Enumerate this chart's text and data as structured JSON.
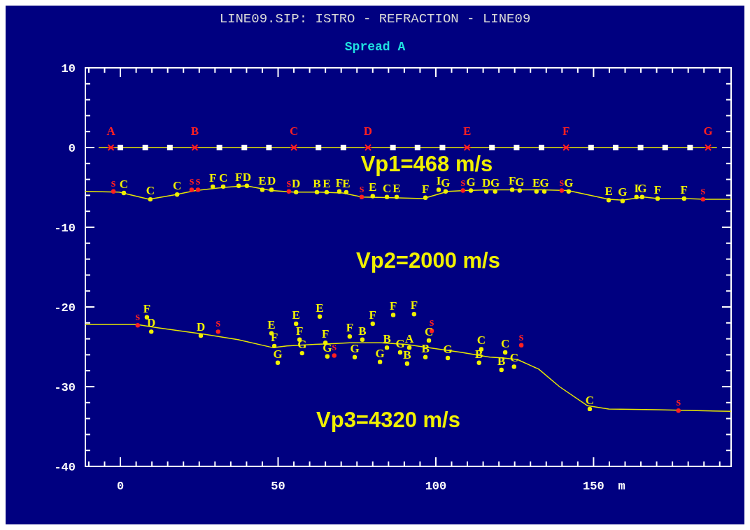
{
  "chart_data": {
    "type": "line",
    "title": "LINE09.SIP: ISTRO - REFRACTION - LINE09",
    "subtitle": "Spread A",
    "xlabel": "m",
    "xlim": [
      -11.1,
      193.6
    ],
    "ylim": [
      -40,
      10
    ],
    "xticks": [
      {
        "value": -10,
        "label": null
      },
      {
        "value": -5,
        "label": null
      },
      0,
      {
        "value": 5,
        "label": null
      },
      {
        "value": 10,
        "label": null
      },
      {
        "value": 15,
        "label": null
      },
      {
        "value": 20,
        "label": null
      },
      {
        "value": 25,
        "label": null
      },
      {
        "value": 30,
        "label": null
      },
      {
        "value": 35,
        "label": null
      },
      {
        "value": 40,
        "label": null
      },
      {
        "value": 45,
        "label": null
      },
      50,
      {
        "value": 55,
        "label": null
      },
      {
        "value": 60,
        "label": null
      },
      {
        "value": 65,
        "label": null
      },
      {
        "value": 70,
        "label": null
      },
      {
        "value": 75,
        "label": null
      },
      {
        "value": 80,
        "label": null
      },
      {
        "value": 85,
        "label": null
      },
      {
        "value": 90,
        "label": null
      },
      {
        "value": 95,
        "label": null
      },
      100,
      {
        "value": 105,
        "label": null
      },
      {
        "value": 110,
        "label": null
      },
      {
        "value": 115,
        "label": null
      },
      {
        "value": 120,
        "label": null
      },
      {
        "value": 125,
        "label": null
      },
      {
        "value": 130,
        "label": null
      },
      {
        "value": 135,
        "label": null
      },
      {
        "value": 140,
        "label": null
      },
      {
        "value": 145,
        "label": null
      },
      150,
      {
        "value": 155,
        "label": null
      },
      {
        "value": 160,
        "label": null
      },
      {
        "value": 165,
        "label": null
      },
      {
        "value": 170,
        "label": null
      },
      {
        "value": 175,
        "label": null
      },
      {
        "value": 180,
        "label": null
      },
      {
        "value": 185,
        "label": null
      },
      {
        "value": 190,
        "label": null
      }
    ],
    "yticks": [
      -40,
      {
        "value": -38,
        "label": null
      },
      {
        "value": -36,
        "label": null
      },
      {
        "value": -34,
        "label": null
      },
      {
        "value": -32,
        "label": null
      },
      -30,
      {
        "value": -28,
        "label": null
      },
      {
        "value": -26,
        "label": null
      },
      {
        "value": -24,
        "label": null
      },
      {
        "value": -22,
        "label": null
      },
      -20,
      {
        "value": -18,
        "label": null
      },
      {
        "value": -16,
        "label": null
      },
      {
        "value": -14,
        "label": null
      },
      {
        "value": -12,
        "label": null
      },
      -10,
      {
        "value": -8,
        "label": null
      },
      {
        "value": -6,
        "label": null
      },
      {
        "value": -4,
        "label": null
      },
      {
        "value": -2,
        "label": null
      },
      0,
      {
        "value": 2,
        "label": null
      },
      {
        "value": 4,
        "label": null
      },
      {
        "value": 6,
        "label": null
      },
      {
        "value": 8,
        "label": null
      },
      10
    ],
    "annotations": [
      "Vp1=468 m/s",
      "Vp2=2000 m/s",
      "Vp3=4320 m/s"
    ],
    "series": [
      {
        "color": "#e8e800",
        "x": [
          -6.9,
          189.1
        ],
        "values": [
          0,
          0
        ]
      },
      {
        "color": "#e8e800",
        "x": [
          -11.1,
          -0.4,
          9.1,
          17.7,
          23.9,
          32.8,
          39.9,
          47.9,
          55.0,
          62.7,
          70.5,
          76.5,
          86.0,
          96.0,
          103.8,
          109.3,
          117.1,
          125.9,
          133.7,
          141.9,
          154.8,
          159.2,
          165.9,
          170.3,
          179.2,
          185.4,
          193.6
        ],
        "values": [
          -5.5,
          -5.6,
          -6.5,
          -5.9,
          -5.4,
          -5.0,
          -4.8,
          -5.4,
          -5.6,
          -5.6,
          -5.7,
          -6.2,
          -6.3,
          -6.4,
          -5.5,
          -5.4,
          -5.3,
          -5.3,
          -5.3,
          -5.4,
          -6.5,
          -6.6,
          -6.2,
          -6.4,
          -6.4,
          -6.5,
          -6.5
        ]
      },
      {
        "color": "#e8e800",
        "x": [
          -11.1,
          5.1,
          11.8,
          26.2,
          37.3,
          48.3,
          52.8,
          61.6,
          67.2,
          72.7,
          82.7,
          90.5,
          99.3,
          108.2,
          117.1,
          121.5,
          125.9,
          132.6,
          139.2,
          148.1,
          154.8,
          170.3,
          193.6
        ],
        "values": [
          -22.2,
          -22.2,
          -22.6,
          -23.4,
          -24.1,
          -25.1,
          -24.9,
          -24.7,
          -24.6,
          -24.5,
          -24.5,
          -24.7,
          -25.2,
          -25.7,
          -26.3,
          -26.4,
          -26.6,
          -27.8,
          -30.0,
          -32.4,
          -32.8,
          -32.9,
          -33.1
        ]
      },
      {
        "type": "scatter",
        "marker": "square",
        "color": "#ffffff",
        "x": [
          0,
          7.9,
          15.7,
          31.4,
          39.3,
          47.1,
          62.8,
          70.7,
          86.4,
          94.2,
          102.1,
          117.8,
          125.6,
          133.5,
          149.2,
          157,
          164.9,
          172.7,
          180.6
        ],
        "values": [
          0,
          0,
          0,
          0,
          0,
          0,
          0,
          0,
          0,
          0,
          0,
          0,
          0,
          0,
          0,
          0,
          0,
          0,
          0
        ]
      },
      {
        "type": "scatter",
        "marker": "cross",
        "color": "#ff2020",
        "x": [
          -3,
          23.6,
          55,
          78.5,
          109.9,
          141.3,
          186.3
        ],
        "values": [
          0,
          0,
          0,
          0,
          0,
          0,
          0
        ],
        "value_labels": [
          "A",
          "B",
          "C",
          "D",
          "E",
          "F",
          "G"
        ]
      },
      {
        "type": "scatter",
        "marker": "circle",
        "color": "#ff2020",
        "x": [
          -2.2,
          22.6,
          24.6,
          53.4,
          76.5,
          108.6,
          139.9,
          184.7,
          5.5,
          31.0,
          67.8,
          98.7,
          127.1,
          176.9
        ],
        "values": [
          -5.5,
          -5.3,
          -5.3,
          -5.5,
          -6.2,
          -5.4,
          -5.4,
          -6.5,
          -22.3,
          -23.1,
          -26.1,
          -23.0,
          -24.8,
          -33.0
        ],
        "value_labels": [
          "s",
          "s",
          "s",
          "s",
          "s",
          "s",
          "s",
          "s",
          "s",
          "s",
          "s",
          "s",
          "s",
          "s"
        ]
      },
      {
        "type": "scatter",
        "marker": "circle",
        "color": "#f0f000",
        "x": [
          1.1,
          9.5,
          18.0,
          29.3,
          32.6,
          37.5,
          40.1,
          45.0,
          47.9,
          55.7,
          62.3,
          65.4,
          69.4,
          71.6,
          80.0,
          84.5,
          87.6,
          96.7,
          100.9,
          103.1,
          111.1,
          116.0,
          118.8,
          124.2,
          126.6,
          131.9,
          134.4,
          142.1,
          154.8,
          159.2,
          163.6,
          165.4,
          170.3,
          178.7,
          8.4,
          9.8,
          25.5,
          47.9,
          48.8,
          49.9,
          55.7,
          56.8,
          57.6,
          63.2,
          65.0,
          65.6,
          72.7,
          74.3,
          76.7,
          80.0,
          84.5,
          82.3,
          86.5,
          88.7,
          90.9,
          91.6,
          93.1,
          96.7,
          97.8,
          103.8,
          113.7,
          114.4,
          120.8,
          122.0,
          124.8,
          148.8
        ],
        "values": [
          -5.7,
          -6.5,
          -5.9,
          -4.9,
          -4.9,
          -4.8,
          -4.8,
          -5.3,
          -5.3,
          -5.6,
          -5.6,
          -5.6,
          -5.5,
          -5.6,
          -6.1,
          -6.2,
          -6.2,
          -6.3,
          -5.3,
          -5.5,
          -5.4,
          -5.5,
          -5.5,
          -5.3,
          -5.4,
          -5.5,
          -5.5,
          -5.5,
          -6.6,
          -6.7,
          -6.2,
          -6.2,
          -6.4,
          -6.4,
          -21.3,
          -23.1,
          -23.6,
          -23.3,
          -24.9,
          -27.0,
          -22.1,
          -24.1,
          -25.8,
          -21.2,
          -24.5,
          -26.2,
          -23.7,
          -26.3,
          -24.1,
          -22.1,
          -25.1,
          -26.9,
          -21.0,
          -25.7,
          -27.1,
          -25.1,
          -20.9,
          -26.3,
          -24.2,
          -26.4,
          -27.0,
          -25.3,
          -27.9,
          -25.7,
          -27.5,
          -32.8
        ],
        "value_labels": [
          "C",
          "C",
          "C",
          "F",
          "C",
          "F",
          "D",
          "E",
          "D",
          "D",
          "B",
          "E",
          "F",
          "E",
          "E",
          "C",
          "E",
          "F",
          "I",
          "G",
          "G",
          "D",
          "G",
          "F",
          "G",
          "E",
          "G",
          "G",
          "E",
          "G",
          "I",
          "G",
          "F",
          "F",
          "F",
          "D",
          "D",
          "E",
          "F",
          "G",
          "E",
          "F",
          "G",
          "E",
          "F",
          "G",
          "F",
          "G",
          "B",
          "F",
          "B",
          "G",
          "F",
          "G",
          "B",
          "A",
          "F",
          "B",
          "C",
          "G",
          "B",
          "C",
          "B",
          "C",
          "C",
          "C"
        ]
      }
    ]
  }
}
